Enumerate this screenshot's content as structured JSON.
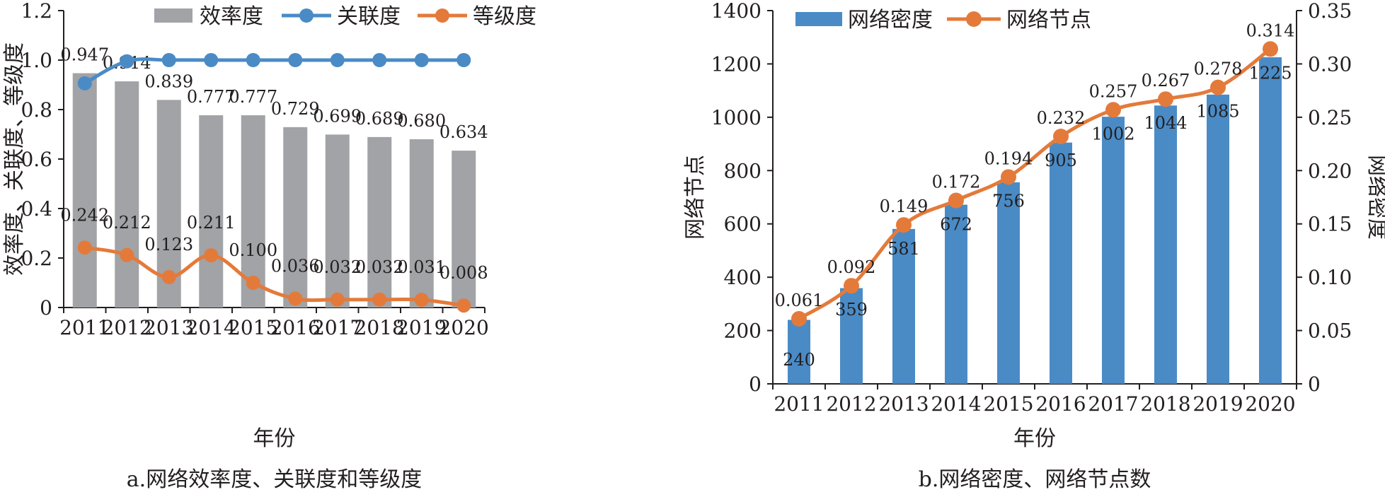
{
  "colors": {
    "efficiency": "#a1a3a6",
    "relevance": "#4a8bc6",
    "grade": "#e47a3a",
    "density": "#4a8bc6",
    "nodes": "#e47a3a",
    "axis": "#231f20"
  },
  "chart_data": [
    {
      "type": "bar",
      "caption": "a.网络效率度、关联度和等级度",
      "xlabel": "年份",
      "ylabel": "效率度、关联度、等级度",
      "ylim": [
        0,
        1.2
      ],
      "yticks": [
        "0",
        "0.2",
        "0.4",
        "0.6",
        "0.8",
        "1.0",
        "1.2"
      ],
      "categories": [
        "2011",
        "2012",
        "2013",
        "2014",
        "2015",
        "2016",
        "2017",
        "2018",
        "2019",
        "2020"
      ],
      "legend_position": "top",
      "series": [
        {
          "name": "效率度",
          "kind": "bar",
          "values": [
            0.947,
            0.914,
            0.839,
            0.777,
            0.777,
            0.729,
            0.699,
            0.689,
            0.68,
            0.634
          ],
          "labels": [
            "0.947",
            "0.914",
            "0.839",
            "0.777",
            "0.777",
            "0.729",
            "0.699",
            "0.689",
            "0.680",
            "0.634"
          ]
        },
        {
          "name": "关联度",
          "kind": "line",
          "values": [
            0.906,
            0.995,
            1.0,
            1.0,
            1.0,
            1.0,
            1.0,
            1.0,
            1.0,
            1.0
          ]
        },
        {
          "name": "等级度",
          "kind": "line",
          "values": [
            0.242,
            0.212,
            0.123,
            0.211,
            0.1,
            0.036,
            0.032,
            0.032,
            0.031,
            0.008
          ],
          "labels": [
            "0.242",
            "0.212",
            "0.123",
            "0.211",
            "0.100",
            "0.036",
            "0.032",
            "0.032",
            "0.031",
            "0.008"
          ]
        }
      ]
    },
    {
      "type": "bar",
      "caption": "b.网络密度、网络节点数",
      "xlabel": "年份",
      "ylabel": "网络节点",
      "ylabel_right": "网络密度",
      "ylim": [
        0,
        1400
      ],
      "ylim_right": [
        0,
        0.35
      ],
      "yticks": [
        "0",
        "200",
        "400",
        "600",
        "800",
        "1000",
        "1200",
        "1400"
      ],
      "yticks_right": [
        "0",
        "0.05",
        "0.10",
        "0.15",
        "0.20",
        "0.25",
        "0.30",
        "0.35"
      ],
      "categories": [
        "2011",
        "2012",
        "2013",
        "2014",
        "2015",
        "2016",
        "2017",
        "2018",
        "2019",
        "2020"
      ],
      "legend_position": "top",
      "series": [
        {
          "name": "网络密度",
          "kind": "bar",
          "axis": "left",
          "values": [
            240,
            359,
            581,
            672,
            756,
            905,
            1002,
            1044,
            1085,
            1225
          ],
          "labels": [
            "240",
            "359",
            "581",
            "672",
            "756",
            "905",
            "1002",
            "1044",
            "1085",
            "1225"
          ]
        },
        {
          "name": "网络节点",
          "kind": "line",
          "axis": "right",
          "values": [
            0.061,
            0.092,
            0.149,
            0.172,
            0.194,
            0.232,
            0.257,
            0.267,
            0.278,
            0.314
          ],
          "labels": [
            "0.061",
            "0.092",
            "0.149",
            "0.172",
            "0.194",
            "0.232",
            "0.257",
            "0.267",
            "0.278",
            "0.314"
          ]
        }
      ]
    }
  ]
}
